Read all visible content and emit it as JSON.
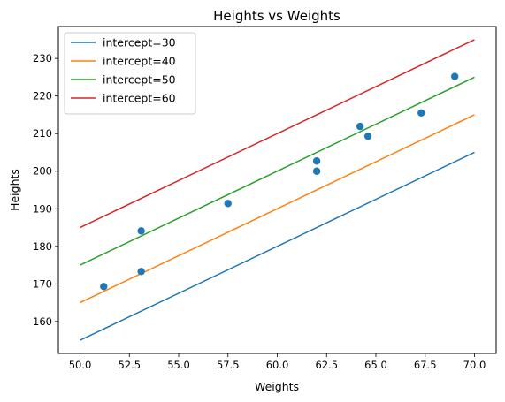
{
  "chart_data": {
    "type": "line",
    "title": "Heights vs Weights",
    "xlabel": "Weights",
    "ylabel": "Heights",
    "xlim": [
      48.9,
      71.1
    ],
    "ylim": [
      151.5,
      238.5
    ],
    "x_ticks": [
      50.0,
      52.5,
      55.0,
      57.5,
      60.0,
      62.5,
      65.0,
      67.5,
      70.0
    ],
    "x_tick_labels": [
      "50.0",
      "52.5",
      "55.0",
      "57.5",
      "60.0",
      "62.5",
      "65.0",
      "67.5",
      "70.0"
    ],
    "y_ticks": [
      160,
      170,
      180,
      190,
      200,
      210,
      220,
      230
    ],
    "y_tick_labels": [
      "160",
      "170",
      "180",
      "190",
      "200",
      "210",
      "220",
      "230"
    ],
    "grid": false,
    "legend_position": "top-left",
    "series": [
      {
        "name": "intercept=30",
        "type": "line",
        "color": "#1f77b4",
        "x": [
          50,
          70
        ],
        "y": [
          155,
          205
        ]
      },
      {
        "name": "intercept=40",
        "type": "line",
        "color": "#ff7f0e",
        "x": [
          50,
          70
        ],
        "y": [
          165,
          215
        ]
      },
      {
        "name": "intercept=50",
        "type": "line",
        "color": "#2ca02c",
        "x": [
          50,
          70
        ],
        "y": [
          175,
          225
        ]
      },
      {
        "name": "intercept=60",
        "type": "line",
        "color": "#d62728",
        "x": [
          50,
          70
        ],
        "y": [
          185,
          235
        ]
      }
    ],
    "scatter": {
      "color": "#1f77b4",
      "points": [
        {
          "x": 51.2,
          "y": 169.3
        },
        {
          "x": 53.1,
          "y": 184.1
        },
        {
          "x": 53.1,
          "y": 173.3
        },
        {
          "x": 57.5,
          "y": 191.4
        },
        {
          "x": 62.0,
          "y": 202.7
        },
        {
          "x": 62.0,
          "y": 200.0
        },
        {
          "x": 64.2,
          "y": 211.9
        },
        {
          "x": 64.6,
          "y": 209.3
        },
        {
          "x": 67.3,
          "y": 215.5
        },
        {
          "x": 69.0,
          "y": 225.2
        }
      ]
    }
  }
}
